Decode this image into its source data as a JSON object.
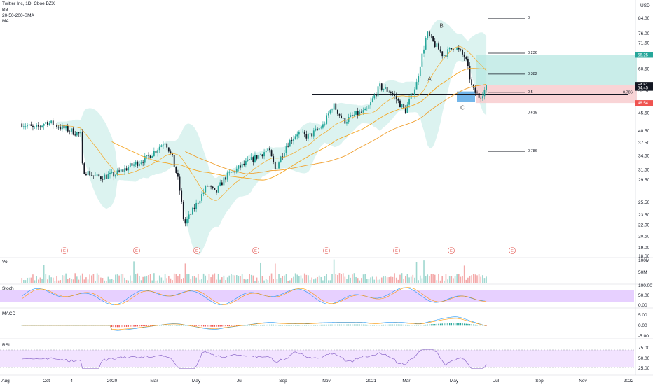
{
  "header": {
    "symbol_line": "Twitter Inc, 1D, Cboe BZX",
    "indicator_1": "BB",
    "indicator_2": "20-50-200-SMA",
    "indicator_3": "MA",
    "currency": "USD"
  },
  "colors": {
    "candle_up": "#26a69a",
    "candle_down": "#131722",
    "bb_fill": "#cdeee9",
    "sma_short": "#f5a623",
    "sma_long": "#f0a030",
    "stoch_band": "#e1c4ff",
    "rsi_band": "#efdcff",
    "macd_line": "#2196f3",
    "signal_line": "#ff9800",
    "target_zone": "#b2e6df",
    "stop_zone": "#f8c9cc",
    "entry_box": "#5aa9e6",
    "price_tag_teal": "#26a69a",
    "price_tag_red": "#ef5350",
    "price_tag_dark": "#131722"
  },
  "chart_data": {
    "type": "candlestick",
    "title": "Twitter Inc, 1D, Cboe BZX",
    "price_axis": {
      "scale": "log",
      "ticks": [
        84.0,
        76.0,
        71.5,
        60.5,
        52.5,
        48.0,
        45.5,
        40.5,
        37.5,
        34.5,
        31.5,
        29.5,
        25.5,
        23.5,
        22.0,
        20.5,
        19.0,
        18.0
      ],
      "range": [
        18.0,
        92.0
      ]
    },
    "time_axis": {
      "ticks": [
        "Aug",
        "Oct",
        "4",
        "2020",
        "Mar",
        "May",
        "Jul",
        "Sep",
        "Nov",
        "2021",
        "Mar",
        "May",
        "Jul",
        "Sep",
        "Nov",
        "2022"
      ]
    },
    "price_path_points": [
      [
        "2019-08-01",
        42.5
      ],
      [
        "2019-08-20",
        41.0
      ],
      [
        "2019-09-05",
        43.0
      ],
      [
        "2019-09-25",
        41.5
      ],
      [
        "2019-10-10",
        40.5
      ],
      [
        "2019-10-24",
        39.5
      ],
      [
        "2019-10-26",
        31.5
      ],
      [
        "2019-11-15",
        30.0
      ],
      [
        "2019-12-10",
        30.5
      ],
      [
        "2020-01-05",
        32.5
      ],
      [
        "2020-01-25",
        34.0
      ],
      [
        "2020-02-05",
        35.5
      ],
      [
        "2020-02-20",
        38.0
      ],
      [
        "2020-03-01",
        34.0
      ],
      [
        "2020-03-10",
        29.0
      ],
      [
        "2020-03-18",
        22.0
      ],
      [
        "2020-04-01",
        24.5
      ],
      [
        "2020-04-20",
        28.5
      ],
      [
        "2020-05-01",
        27.0
      ],
      [
        "2020-05-15",
        30.0
      ],
      [
        "2020-06-10",
        32.5
      ],
      [
        "2020-07-01",
        34.5
      ],
      [
        "2020-07-15",
        36.0
      ],
      [
        "2020-07-25",
        31.5
      ],
      [
        "2020-08-10",
        37.0
      ],
      [
        "2020-08-25",
        40.0
      ],
      [
        "2020-09-10",
        39.0
      ],
      [
        "2020-10-01",
        42.0
      ],
      [
        "2020-10-15",
        48.0
      ],
      [
        "2020-10-30",
        43.0
      ],
      [
        "2020-11-15",
        45.0
      ],
      [
        "2020-12-01",
        46.0
      ],
      [
        "2020-12-20",
        54.0
      ],
      [
        "2021-01-05",
        52.0
      ],
      [
        "2021-01-25",
        46.0
      ],
      [
        "2021-02-10",
        55.0
      ],
      [
        "2021-02-25",
        76.0
      ],
      [
        "2021-03-05",
        72.0
      ],
      [
        "2021-03-20",
        66.0
      ],
      [
        "2021-04-05",
        70.0
      ],
      [
        "2021-04-20",
        65.0
      ],
      [
        "2021-04-30",
        53.0
      ],
      [
        "2021-05-10",
        50.5
      ],
      [
        "2021-05-20",
        53.5
      ]
    ],
    "price_labels": {
      "top_tag": "66.25",
      "last_a": "54.51",
      "last_b": "54.45",
      "stop_tag": "48.54"
    },
    "fib_levels": [
      {
        "label": "0",
        "value": 84.0
      },
      {
        "label": "0.236",
        "value": 67.0
      },
      {
        "label": "0.382",
        "value": 58.5
      },
      {
        "label": "0.5",
        "value": 52.0
      },
      {
        "label": "0.618",
        "value": 45.5
      },
      {
        "label": "0.786",
        "value": 35.5
      }
    ],
    "horizontal_line": {
      "label": "0.786",
      "value": 51.2
    },
    "waves": [
      "A",
      "B",
      "C"
    ],
    "earnings_marks": [
      "E",
      "E",
      "E",
      "E",
      "E",
      "E",
      "E",
      "E"
    ],
    "volume_axis": {
      "ticks": [
        "100M",
        "50M"
      ]
    },
    "stoch_axis": {
      "ticks": [
        "100.00",
        "50.00",
        "0.00"
      ]
    },
    "macd_axis": {
      "ticks": [
        "5.00",
        "0.00",
        "-5.00"
      ]
    },
    "rsi_axis": {
      "ticks": [
        "75.00",
        "50.00",
        "25.00"
      ]
    }
  },
  "panes": {
    "volume": "Vol",
    "stoch": "Stoch",
    "macd": "MACD",
    "rsi": "RSI"
  }
}
